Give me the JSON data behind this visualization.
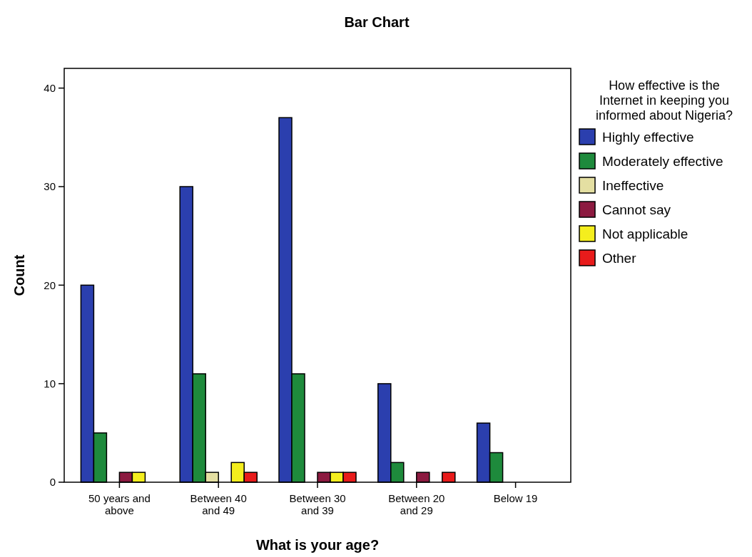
{
  "chart_data": {
    "type": "bar",
    "title": "Bar Chart",
    "xlabel": "What is your age?",
    "ylabel": "Count",
    "legend_title": "How effective is the Internet in keeping you informed about Nigeria?",
    "categories": [
      "50 years and above",
      "Between 40 and 49",
      "Between 30 and 39",
      "Between 20 and 29",
      "Below 19"
    ],
    "series": [
      {
        "name": "Highly effective",
        "color": "#2b3fae",
        "values": [
          20,
          30,
          37,
          10,
          6
        ]
      },
      {
        "name": "Moderately effective",
        "color": "#1e8a3c",
        "values": [
          5,
          11,
          11,
          2,
          3
        ]
      },
      {
        "name": "Ineffective",
        "color": "#e4dfa2",
        "values": [
          0,
          1,
          0,
          0,
          0
        ]
      },
      {
        "name": "Cannot say",
        "color": "#8c1a40",
        "values": [
          1,
          0,
          1,
          1,
          0
        ]
      },
      {
        "name": "Not applicable",
        "color": "#f4ee1e",
        "values": [
          1,
          2,
          1,
          0,
          0
        ]
      },
      {
        "name": "Other",
        "color": "#e81b1b",
        "values": [
          0,
          1,
          1,
          1,
          0
        ]
      }
    ],
    "ylim": [
      0,
      42
    ],
    "yticks": [
      0,
      10,
      20,
      30,
      40
    ],
    "grid": false,
    "legend": "right"
  }
}
